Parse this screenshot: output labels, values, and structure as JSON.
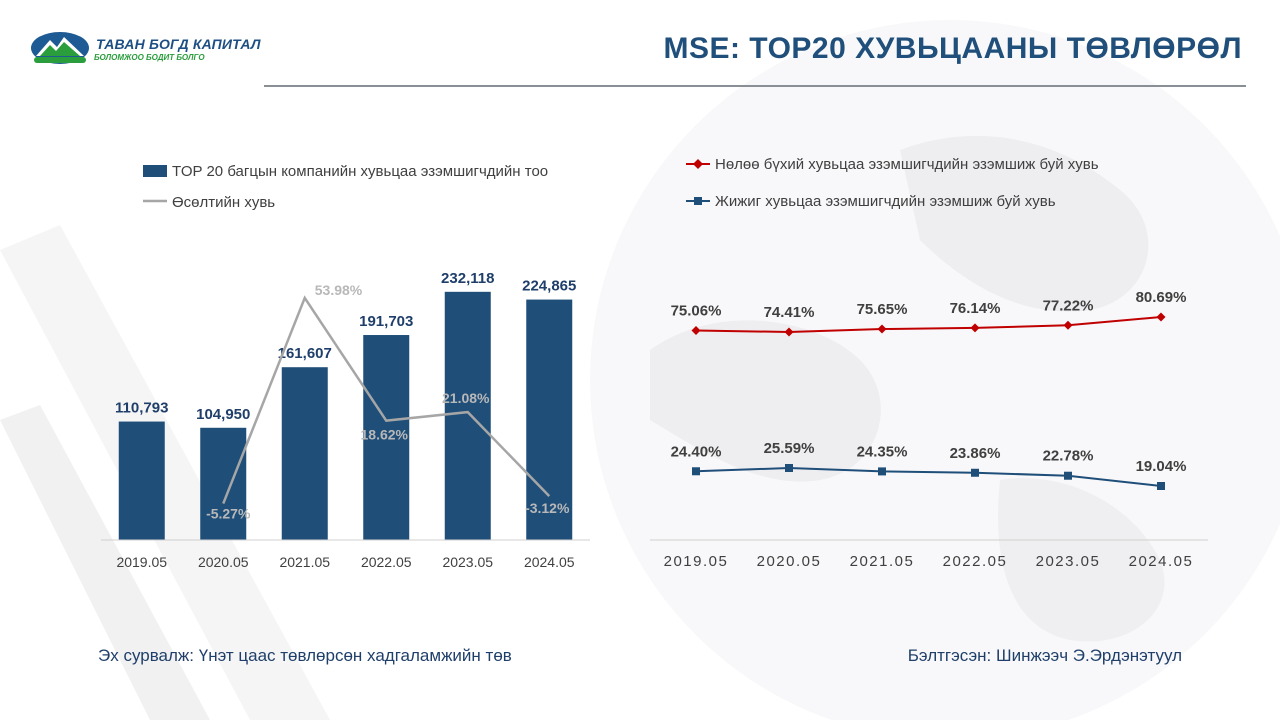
{
  "header": {
    "title": "MSE: TOP20 ХУВЬЦААНЫ ТӨВЛӨРӨЛ",
    "logo_name": "ТАВАН БОГД КАПИТАЛ",
    "logo_slogan": "БОЛОМЖОО БОДИТ БОЛГО"
  },
  "colors": {
    "bar": "#1f4e79",
    "growth_line": "#a6a6a6",
    "dominant_line": "#c00000",
    "minority_line": "#1f4e79",
    "title": "#1f4f7a"
  },
  "chart_data": [
    {
      "type": "bar",
      "categories": [
        "2019.05",
        "2020.05",
        "2021.05",
        "2022.05",
        "2023.05",
        "2024.05"
      ],
      "series": [
        {
          "name": "TOP 20 багцын компанийн хувьцаа эзэмшигчдийн тоо",
          "values": [
            110793,
            104950,
            161607,
            191703,
            232118,
            224865
          ]
        }
      ],
      "value_labels": [
        "110,793",
        "104,950",
        "161,607",
        "191,703",
        "232,118",
        "224,865"
      ],
      "ylim": [
        0,
        260000
      ],
      "legend_position": "top-left"
    },
    {
      "type": "line",
      "categories": [
        "2019.05",
        "2020.05",
        "2021.05",
        "2022.05",
        "2023.05",
        "2024.05"
      ],
      "series": [
        {
          "name": "Өсөлтийн хувь",
          "values": [
            null,
            -5.27,
            53.98,
            18.62,
            21.08,
            -3.12
          ]
        }
      ],
      "value_labels": [
        "",
        "-5.27%",
        "53.98%",
        "18.62%",
        "21.08%",
        "-3.12%"
      ],
      "ylim": [
        -10,
        60
      ],
      "overlay_of": "bar"
    },
    {
      "type": "line",
      "categories": [
        "2019.05",
        "2020.05",
        "2021.05",
        "2022.05",
        "2023.05",
        "2024.05"
      ],
      "series": [
        {
          "name": "Нөлөө бүхий хувьцаа эзэмшигчдийн эзэмшиж буй хувь",
          "marker": "diamond",
          "values": [
            75.06,
            74.41,
            75.65,
            76.14,
            77.22,
            80.69
          ],
          "value_labels": [
            "75.06%",
            "74.41%",
            "75.65%",
            "76.14%",
            "77.22%",
            "80.69%"
          ]
        },
        {
          "name": "Жижиг хувьцаа эзэмшигчдийн эзэмшиж буй хувь",
          "marker": "square",
          "values": [
            24.4,
            25.59,
            24.35,
            23.86,
            22.78,
            19.04
          ],
          "value_labels": [
            "24.40%",
            "25.59%",
            "24.35%",
            "23.86%",
            "22.78%",
            "19.04%"
          ]
        }
      ],
      "legend_position": "top-left"
    }
  ],
  "footer": {
    "source": "Эх сурвалж: Үнэт цаас төвлөрсөн хадгаламжийн төв",
    "prepared_by": "Бэлтгэсэн: Шинжээч Э.Эрдэнэтуул"
  }
}
